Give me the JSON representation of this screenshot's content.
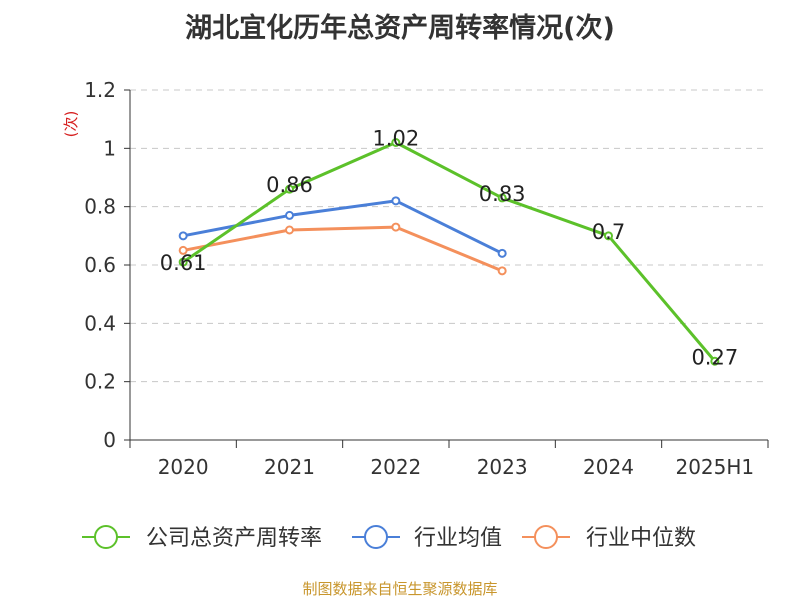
{
  "title": "湖北宜化历年总资产周转率情况(次)",
  "source": "制图数据来自恒生聚源数据库",
  "chart_data": {
    "type": "line",
    "title": "湖北宜化历年总资产周转率情况(次)",
    "ylabel": "(次)",
    "xlabel": "",
    "categories": [
      "2020",
      "2021",
      "2022",
      "2023",
      "2024",
      "2025H1"
    ],
    "ylim": [
      0,
      1.2
    ],
    "yticks": [
      "0",
      "0.2",
      "0.4",
      "0.6",
      "0.8",
      "1",
      "1.2"
    ],
    "grid": true,
    "legend_position": "bottom",
    "series": [
      {
        "name": "公司总资产周转率",
        "color": "#5cc12a",
        "values": [
          0.61,
          0.86,
          1.02,
          0.83,
          0.7,
          0.27
        ],
        "labels": [
          "0.61",
          "0.86",
          "1.02",
          "0.83",
          "0.7",
          "0.27"
        ],
        "show_labels": true
      },
      {
        "name": "行业均值",
        "color": "#4a7fd8",
        "values": [
          0.7,
          0.77,
          0.82,
          0.64,
          null,
          null
        ],
        "show_labels": false
      },
      {
        "name": "行业中位数",
        "color": "#f4905c",
        "values": [
          0.65,
          0.72,
          0.73,
          0.58,
          null,
          null
        ],
        "show_labels": false
      }
    ]
  }
}
